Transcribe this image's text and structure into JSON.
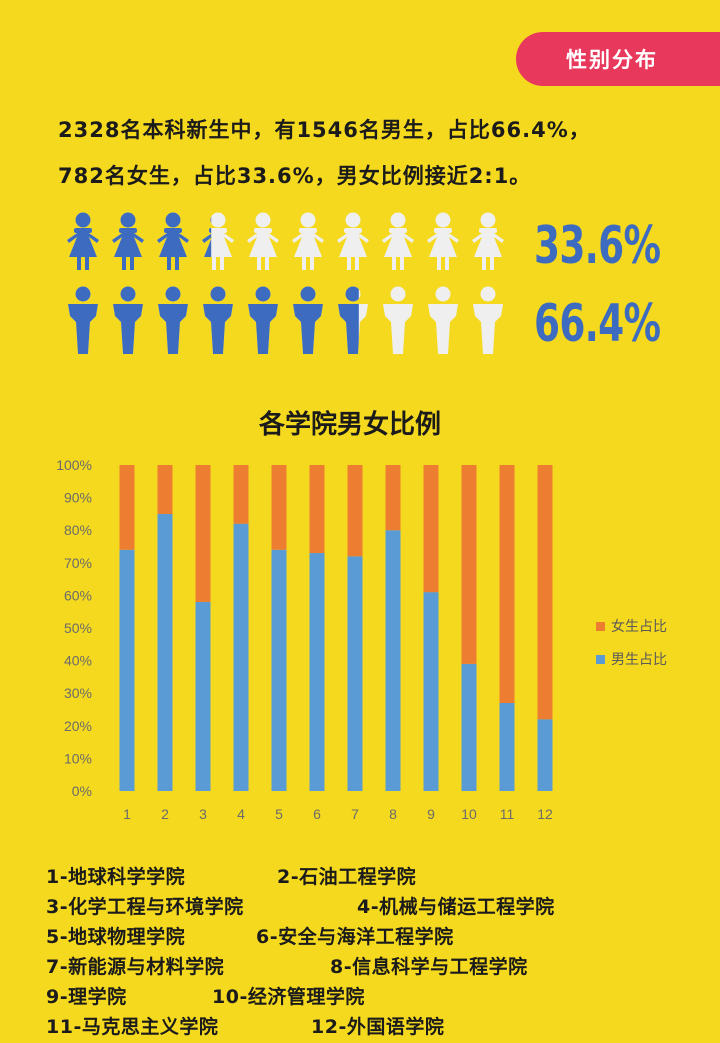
{
  "tag": "性别分布",
  "intro": {
    "line1": "2328名本科新生中，有1546名男生，占比66.4%，",
    "line2": "782名女生，占比33.6%，男女比例接近2:1。"
  },
  "pictogram": {
    "female_pct_label": "33.6%",
    "male_pct_label": "66.4%",
    "female_fraction": 0.336,
    "male_fraction": 0.664,
    "icons_per_row": 10,
    "filled_color": "#3d6bbf",
    "empty_color": "#efefef"
  },
  "chart_data": {
    "type": "bar",
    "stacked": true,
    "title": "各学院男女比例",
    "categories": [
      "1",
      "2",
      "3",
      "4",
      "5",
      "6",
      "7",
      "8",
      "9",
      "10",
      "11",
      "12"
    ],
    "series": [
      {
        "name": "男生占比",
        "color": "#5b9bd5",
        "values": [
          74,
          85,
          58,
          82,
          74,
          73,
          72,
          80,
          61,
          39,
          27,
          22
        ]
      },
      {
        "name": "女生占比",
        "color": "#ed7d31",
        "values": [
          26,
          15,
          42,
          18,
          26,
          27,
          28,
          20,
          39,
          61,
          73,
          78
        ]
      }
    ],
    "yticks": [
      "0%",
      "10%",
      "20%",
      "30%",
      "40%",
      "50%",
      "60%",
      "70%",
      "80%",
      "90%",
      "100%"
    ],
    "ylim": [
      0,
      100
    ],
    "legend": "right",
    "grid": false
  },
  "legend": {
    "female": "女生占比",
    "male": "男生占比"
  },
  "key": [
    "1-地球科学学院",
    "2-石油工程学院",
    "3-化学工程与环境学院",
    "4-机械与储运工程学院",
    "5-地球物理学院",
    "6-安全与海洋工程学院",
    "7-新能源与材料学院",
    "8-信息科学与工程学院",
    "9-理学院",
    "10-经济管理学院",
    "11-马克思主义学院",
    "12-外国语学院"
  ]
}
